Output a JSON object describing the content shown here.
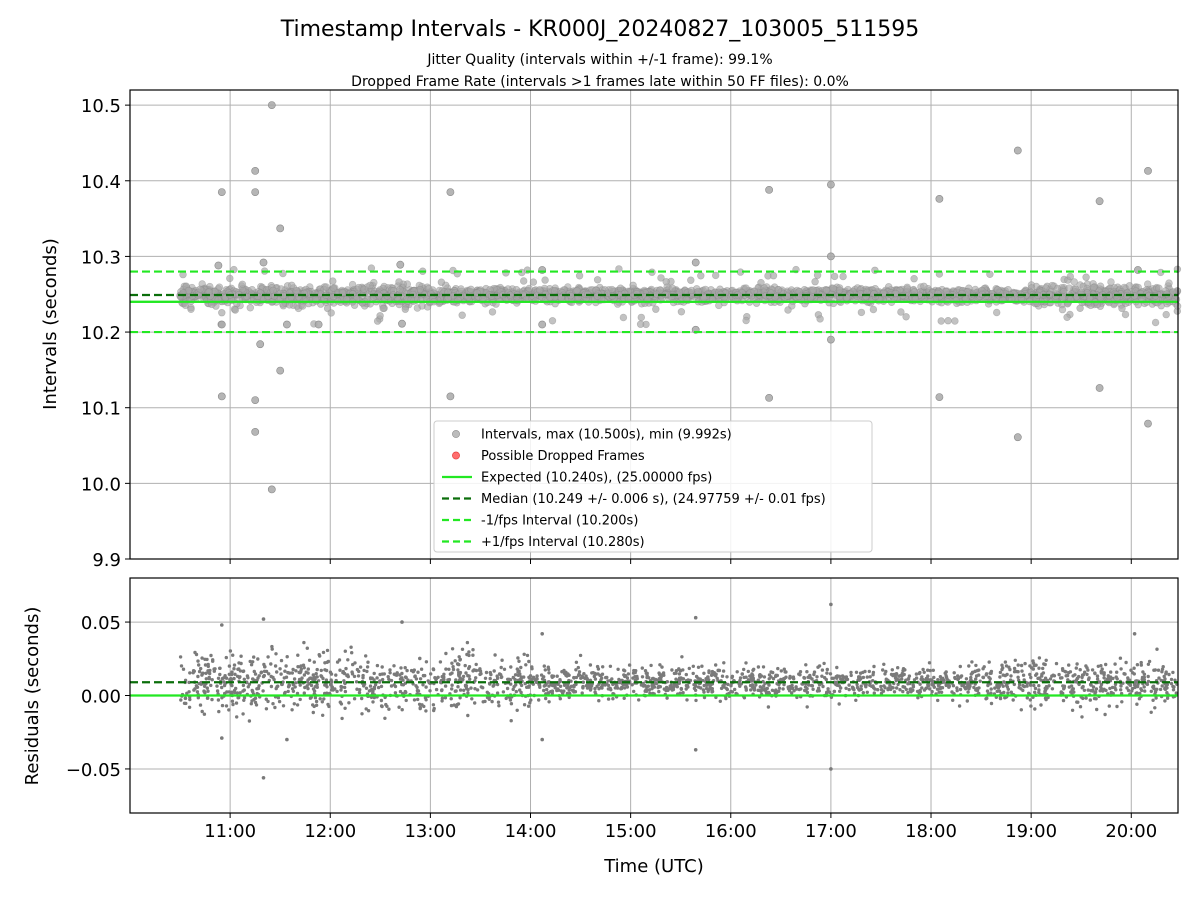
{
  "chart_data": [
    {
      "type": "scatter",
      "title": "Timestamp Intervals - KR000J_20240827_103005_511595",
      "subtitle_lines": [
        "Jitter Quality (intervals within +/-1 frame): 99.1%",
        "Dropped Frame Rate (intervals >1 frames late within 50 FF files): 0.0%"
      ],
      "xlabel": "",
      "ylabel": "Intervals (seconds)",
      "x_range": [
        "10:00",
        "20:28"
      ],
      "ylim": [
        9.9,
        10.52
      ],
      "y_ticks": [
        "9.9",
        "10.0",
        "10.1",
        "10.2",
        "10.3",
        "10.4",
        "10.5"
      ],
      "grid": true,
      "legend_placement": "lower-center",
      "legend": [
        {
          "label": "Intervals, max (10.500s), min (9.992s)",
          "marker": "circle",
          "color": "#a0a0a0"
        },
        {
          "label": "Possible Dropped Frames",
          "marker": "circle",
          "color": "#ff5555"
        },
        {
          "label": "Expected (10.240s), (25.00000 fps)",
          "style": "solid",
          "color": "#22e822"
        },
        {
          "label": "Median (10.249 +/- 0.006 s), (24.97759 +/- 0.01 fps)",
          "style": "dashed",
          "color": "#0b6e0b"
        },
        {
          "label": "-1/fps Interval (10.200s)",
          "style": "dashed",
          "color": "#22e822"
        },
        {
          "label": "+1/fps Interval (10.280s)",
          "style": "dashed",
          "color": "#22e822"
        }
      ],
      "reference_lines": {
        "expected": 10.24,
        "median": 10.249,
        "minus_1fps": 10.2,
        "plus_1fps": 10.28
      },
      "data_span": {
        "start": "10:30",
        "end": "20:28"
      },
      "core_band": {
        "center": 10.249,
        "typical_spread": 0.006
      },
      "outliers": [
        {
          "x": "11:25",
          "y": 10.5
        },
        {
          "x": "18:52",
          "y": 10.44
        },
        {
          "x": "11:15",
          "y": 10.413
        },
        {
          "x": "20:10",
          "y": 10.413
        },
        {
          "x": "17:00",
          "y": 10.395
        },
        {
          "x": "10:55",
          "y": 10.385
        },
        {
          "x": "11:15",
          "y": 10.385
        },
        {
          "x": "13:12",
          "y": 10.385
        },
        {
          "x": "16:23",
          "y": 10.388
        },
        {
          "x": "18:05",
          "y": 10.376
        },
        {
          "x": "19:41",
          "y": 10.373
        },
        {
          "x": "11:30",
          "y": 10.337
        },
        {
          "x": "17:00",
          "y": 10.3
        },
        {
          "x": "11:20",
          "y": 10.292
        },
        {
          "x": "15:39",
          "y": 10.292
        },
        {
          "x": "10:53",
          "y": 10.288
        },
        {
          "x": "12:42",
          "y": 10.289
        },
        {
          "x": "14:07",
          "y": 10.282
        },
        {
          "x": "20:04",
          "y": 10.282
        },
        {
          "x": "10:55",
          "y": 10.21
        },
        {
          "x": "11:34",
          "y": 10.21
        },
        {
          "x": "11:53",
          "y": 10.21
        },
        {
          "x": "12:43",
          "y": 10.211
        },
        {
          "x": "14:07",
          "y": 10.21
        },
        {
          "x": "15:39",
          "y": 10.203
        },
        {
          "x": "17:00",
          "y": 10.19
        },
        {
          "x": "11:18",
          "y": 10.184
        },
        {
          "x": "11:30",
          "y": 10.149
        },
        {
          "x": "19:41",
          "y": 10.126
        },
        {
          "x": "10:55",
          "y": 10.115
        },
        {
          "x": "11:15",
          "y": 10.11
        },
        {
          "x": "13:12",
          "y": 10.115
        },
        {
          "x": "16:23",
          "y": 10.113
        },
        {
          "x": "18:05",
          "y": 10.114
        },
        {
          "x": "20:10",
          "y": 10.079
        },
        {
          "x": "11:15",
          "y": 10.068
        },
        {
          "x": "18:52",
          "y": 10.061
        },
        {
          "x": "11:25",
          "y": 9.992
        }
      ]
    },
    {
      "type": "scatter",
      "xlabel": "Time (UTC)",
      "ylabel": "Residuals (seconds)",
      "x_range": [
        "10:00",
        "20:28"
      ],
      "x_ticks": [
        "11:00",
        "12:00",
        "13:00",
        "14:00",
        "15:00",
        "16:00",
        "17:00",
        "18:00",
        "19:00",
        "20:00"
      ],
      "ylim": [
        -0.08,
        0.08
      ],
      "y_ticks": [
        "−0.05",
        "0.00",
        "0.05"
      ],
      "grid": true,
      "reference_lines": {
        "zero": 0.0,
        "median_offset": 0.009
      },
      "data_span": {
        "start": "10:30",
        "end": "20:28"
      },
      "outliers": [
        {
          "x": "17:00",
          "y": 0.062
        },
        {
          "x": "15:39",
          "y": 0.053
        },
        {
          "x": "11:20",
          "y": 0.052
        },
        {
          "x": "12:43",
          "y": 0.05
        },
        {
          "x": "10:55",
          "y": 0.048
        },
        {
          "x": "14:07",
          "y": 0.042
        },
        {
          "x": "20:02",
          "y": 0.042
        },
        {
          "x": "11:20",
          "y": -0.056
        },
        {
          "x": "17:00",
          "y": -0.05
        },
        {
          "x": "15:39",
          "y": -0.037
        },
        {
          "x": "11:34",
          "y": -0.03
        },
        {
          "x": "14:07",
          "y": -0.03
        },
        {
          "x": "10:55",
          "y": -0.029
        }
      ]
    }
  ],
  "colors": {
    "scatter_top": "#a8a8a8",
    "scatter_bottom": "#7a7a7a",
    "expected": "#22e822",
    "median": "#0b6e0b",
    "dropped": "#ff5555",
    "grid": "#b0b0b0"
  }
}
